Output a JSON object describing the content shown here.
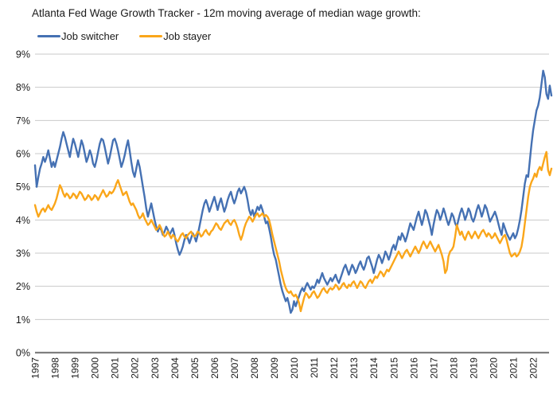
{
  "title": "Atlanta Fed Wage Growth Tracker - 12m moving average of median wage growth:",
  "chart_data": {
    "type": "line",
    "frequency": "monthly",
    "x_start": "1997-01",
    "x_end": "2022-12",
    "x_tick_labels": [
      "1997",
      "1998",
      "1999",
      "2000",
      "2001",
      "2002",
      "2003",
      "2004",
      "2005",
      "2006",
      "2007",
      "2008",
      "2009",
      "2010",
      "2011",
      "2012",
      "2013",
      "2014",
      "2015",
      "2016",
      "2017",
      "2018",
      "2019",
      "2020",
      "2021",
      "2022"
    ],
    "yticks": [
      "0%",
      "1%",
      "2%",
      "3%",
      "4%",
      "5%",
      "6%",
      "7%",
      "8%",
      "9%"
    ],
    "ylim": [
      0,
      9
    ],
    "grid": true,
    "legend_position": "top-left",
    "grid_color": "#c9c9c9",
    "axis_line_color": "#7f7f7f",
    "text_color": "#1a1a1a",
    "series": [
      {
        "name": "Job switcher",
        "color": "#4571b3",
        "values": [
          5.65,
          5.0,
          5.3,
          5.55,
          5.7,
          5.9,
          5.75,
          5.9,
          6.1,
          5.85,
          5.6,
          5.75,
          5.6,
          5.8,
          6.0,
          6.2,
          6.45,
          6.65,
          6.5,
          6.3,
          6.1,
          5.9,
          6.2,
          6.45,
          6.3,
          6.1,
          5.9,
          6.15,
          6.4,
          6.25,
          6.0,
          5.75,
          5.9,
          6.1,
          5.95,
          5.7,
          5.6,
          5.8,
          6.05,
          6.3,
          6.45,
          6.4,
          6.2,
          5.95,
          5.7,
          5.9,
          6.15,
          6.4,
          6.45,
          6.3,
          6.1,
          5.85,
          5.6,
          5.75,
          5.95,
          6.2,
          6.4,
          6.1,
          5.75,
          5.45,
          5.3,
          5.55,
          5.8,
          5.6,
          5.3,
          5.0,
          4.7,
          4.35,
          4.1,
          4.3,
          4.5,
          4.25,
          4.0,
          3.8,
          3.65,
          3.8,
          3.7,
          3.55,
          3.65,
          3.8,
          3.7,
          3.55,
          3.65,
          3.75,
          3.55,
          3.3,
          3.1,
          2.95,
          3.05,
          3.2,
          3.4,
          3.55,
          3.45,
          3.3,
          3.45,
          3.6,
          3.5,
          3.35,
          3.55,
          3.8,
          4.05,
          4.3,
          4.5,
          4.6,
          4.45,
          4.25,
          4.4,
          4.55,
          4.7,
          4.5,
          4.3,
          4.5,
          4.65,
          4.45,
          4.25,
          4.4,
          4.6,
          4.75,
          4.85,
          4.65,
          4.5,
          4.65,
          4.85,
          4.95,
          4.8,
          4.9,
          5.0,
          4.85,
          4.6,
          4.3,
          4.15,
          4.3,
          4.1,
          4.25,
          4.4,
          4.3,
          4.45,
          4.3,
          4.1,
          3.9,
          3.95,
          3.75,
          3.5,
          3.2,
          2.95,
          2.8,
          2.55,
          2.3,
          2.05,
          1.85,
          1.7,
          1.55,
          1.65,
          1.45,
          1.2,
          1.3,
          1.55,
          1.4,
          1.55,
          1.7,
          1.85,
          1.95,
          1.85,
          2.0,
          2.1,
          2.0,
          1.9,
          2.0,
          1.95,
          2.05,
          2.2,
          2.1,
          2.25,
          2.4,
          2.25,
          2.15,
          2.05,
          2.15,
          2.25,
          2.15,
          2.25,
          2.35,
          2.2,
          2.1,
          2.25,
          2.4,
          2.55,
          2.65,
          2.5,
          2.35,
          2.5,
          2.65,
          2.55,
          2.4,
          2.5,
          2.65,
          2.75,
          2.6,
          2.5,
          2.65,
          2.85,
          2.9,
          2.75,
          2.6,
          2.4,
          2.6,
          2.8,
          2.95,
          2.85,
          2.7,
          2.85,
          3.05,
          2.95,
          2.8,
          2.95,
          3.15,
          3.25,
          3.1,
          3.3,
          3.5,
          3.4,
          3.6,
          3.5,
          3.35,
          3.5,
          3.7,
          3.9,
          3.8,
          3.7,
          3.9,
          4.1,
          4.25,
          4.05,
          3.85,
          4.05,
          4.3,
          4.2,
          4.0,
          3.8,
          3.55,
          3.85,
          4.1,
          4.3,
          4.2,
          4.0,
          4.15,
          4.35,
          4.2,
          4.0,
          3.85,
          4.0,
          4.2,
          4.1,
          3.9,
          3.8,
          4.0,
          4.2,
          4.35,
          4.2,
          4.0,
          4.15,
          4.35,
          4.25,
          4.05,
          3.95,
          4.1,
          4.3,
          4.45,
          4.3,
          4.1,
          4.25,
          4.45,
          4.35,
          4.15,
          3.95,
          4.05,
          4.15,
          4.25,
          4.1,
          3.9,
          3.7,
          3.55,
          3.9,
          3.75,
          3.6,
          3.5,
          3.4,
          3.5,
          3.6,
          3.45,
          3.55,
          3.75,
          4.0,
          4.3,
          4.7,
          5.1,
          5.35,
          5.3,
          5.8,
          6.3,
          6.7,
          7.0,
          7.3,
          7.45,
          7.7,
          8.1,
          8.5,
          8.3,
          7.8,
          7.65,
          8.05,
          7.75
        ]
      },
      {
        "name": "Job stayer",
        "color": "#faa61a",
        "values": [
          4.45,
          4.25,
          4.1,
          4.2,
          4.3,
          4.35,
          4.25,
          4.35,
          4.45,
          4.35,
          4.3,
          4.4,
          4.5,
          4.65,
          4.85,
          5.05,
          4.95,
          4.8,
          4.7,
          4.8,
          4.75,
          4.65,
          4.7,
          4.8,
          4.75,
          4.65,
          4.75,
          4.85,
          4.8,
          4.7,
          4.6,
          4.65,
          4.75,
          4.7,
          4.6,
          4.65,
          4.75,
          4.7,
          4.6,
          4.7,
          4.8,
          4.9,
          4.8,
          4.7,
          4.75,
          4.85,
          4.8,
          4.85,
          4.95,
          5.1,
          5.2,
          5.05,
          4.9,
          4.75,
          4.8,
          4.85,
          4.7,
          4.55,
          4.45,
          4.5,
          4.4,
          4.3,
          4.15,
          4.05,
          4.1,
          4.2,
          4.05,
          3.95,
          3.85,
          3.9,
          4.0,
          3.9,
          3.8,
          3.7,
          3.75,
          3.85,
          3.75,
          3.6,
          3.5,
          3.55,
          3.65,
          3.55,
          3.45,
          3.55,
          3.5,
          3.4,
          3.35,
          3.45,
          3.55,
          3.6,
          3.5,
          3.45,
          3.55,
          3.6,
          3.65,
          3.55,
          3.5,
          3.55,
          3.65,
          3.6,
          3.5,
          3.55,
          3.65,
          3.7,
          3.6,
          3.55,
          3.65,
          3.7,
          3.8,
          3.9,
          3.85,
          3.75,
          3.7,
          3.8,
          3.9,
          3.95,
          4.0,
          3.9,
          3.85,
          3.95,
          4.0,
          3.9,
          3.75,
          3.55,
          3.4,
          3.55,
          3.75,
          3.9,
          4.0,
          4.1,
          4.05,
          3.95,
          4.05,
          4.15,
          4.2,
          4.1,
          4.15,
          4.2,
          4.1,
          4.15,
          4.1,
          4.0,
          3.8,
          3.55,
          3.35,
          3.15,
          2.95,
          2.75,
          2.5,
          2.3,
          2.1,
          1.95,
          1.85,
          1.8,
          1.85,
          1.75,
          1.7,
          1.75,
          1.65,
          1.5,
          1.25,
          1.45,
          1.65,
          1.8,
          1.75,
          1.65,
          1.7,
          1.8,
          1.85,
          1.75,
          1.65,
          1.7,
          1.8,
          1.9,
          1.95,
          1.85,
          1.8,
          1.9,
          1.95,
          1.9,
          1.95,
          2.05,
          2.0,
          1.9,
          1.95,
          2.05,
          2.1,
          2.0,
          1.95,
          2.05,
          2.0,
          2.1,
          2.15,
          2.05,
          1.95,
          2.05,
          2.15,
          2.1,
          2.0,
          1.95,
          2.05,
          2.15,
          2.2,
          2.1,
          2.2,
          2.3,
          2.25,
          2.35,
          2.45,
          2.4,
          2.3,
          2.4,
          2.5,
          2.45,
          2.55,
          2.65,
          2.75,
          2.85,
          2.95,
          3.05,
          2.95,
          2.85,
          2.95,
          3.05,
          3.1,
          3.0,
          2.9,
          3.0,
          3.1,
          3.2,
          3.1,
          3.0,
          3.1,
          3.25,
          3.35,
          3.25,
          3.15,
          3.25,
          3.35,
          3.25,
          3.15,
          3.05,
          3.15,
          3.25,
          3.1,
          2.95,
          2.75,
          2.4,
          2.5,
          2.9,
          3.05,
          3.1,
          3.2,
          3.5,
          3.85,
          3.7,
          3.55,
          3.65,
          3.5,
          3.4,
          3.55,
          3.65,
          3.55,
          3.45,
          3.55,
          3.65,
          3.55,
          3.45,
          3.55,
          3.65,
          3.7,
          3.6,
          3.5,
          3.6,
          3.55,
          3.45,
          3.5,
          3.6,
          3.5,
          3.4,
          3.3,
          3.4,
          3.5,
          3.55,
          3.4,
          3.2,
          3.0,
          2.9,
          2.95,
          3.0,
          2.9,
          2.95,
          3.05,
          3.2,
          3.5,
          3.9,
          4.3,
          4.7,
          5.0,
          5.15,
          5.25,
          5.4,
          5.3,
          5.5,
          5.6,
          5.5,
          5.7,
          5.9,
          6.05,
          5.5,
          5.35,
          5.55
        ]
      }
    ]
  }
}
